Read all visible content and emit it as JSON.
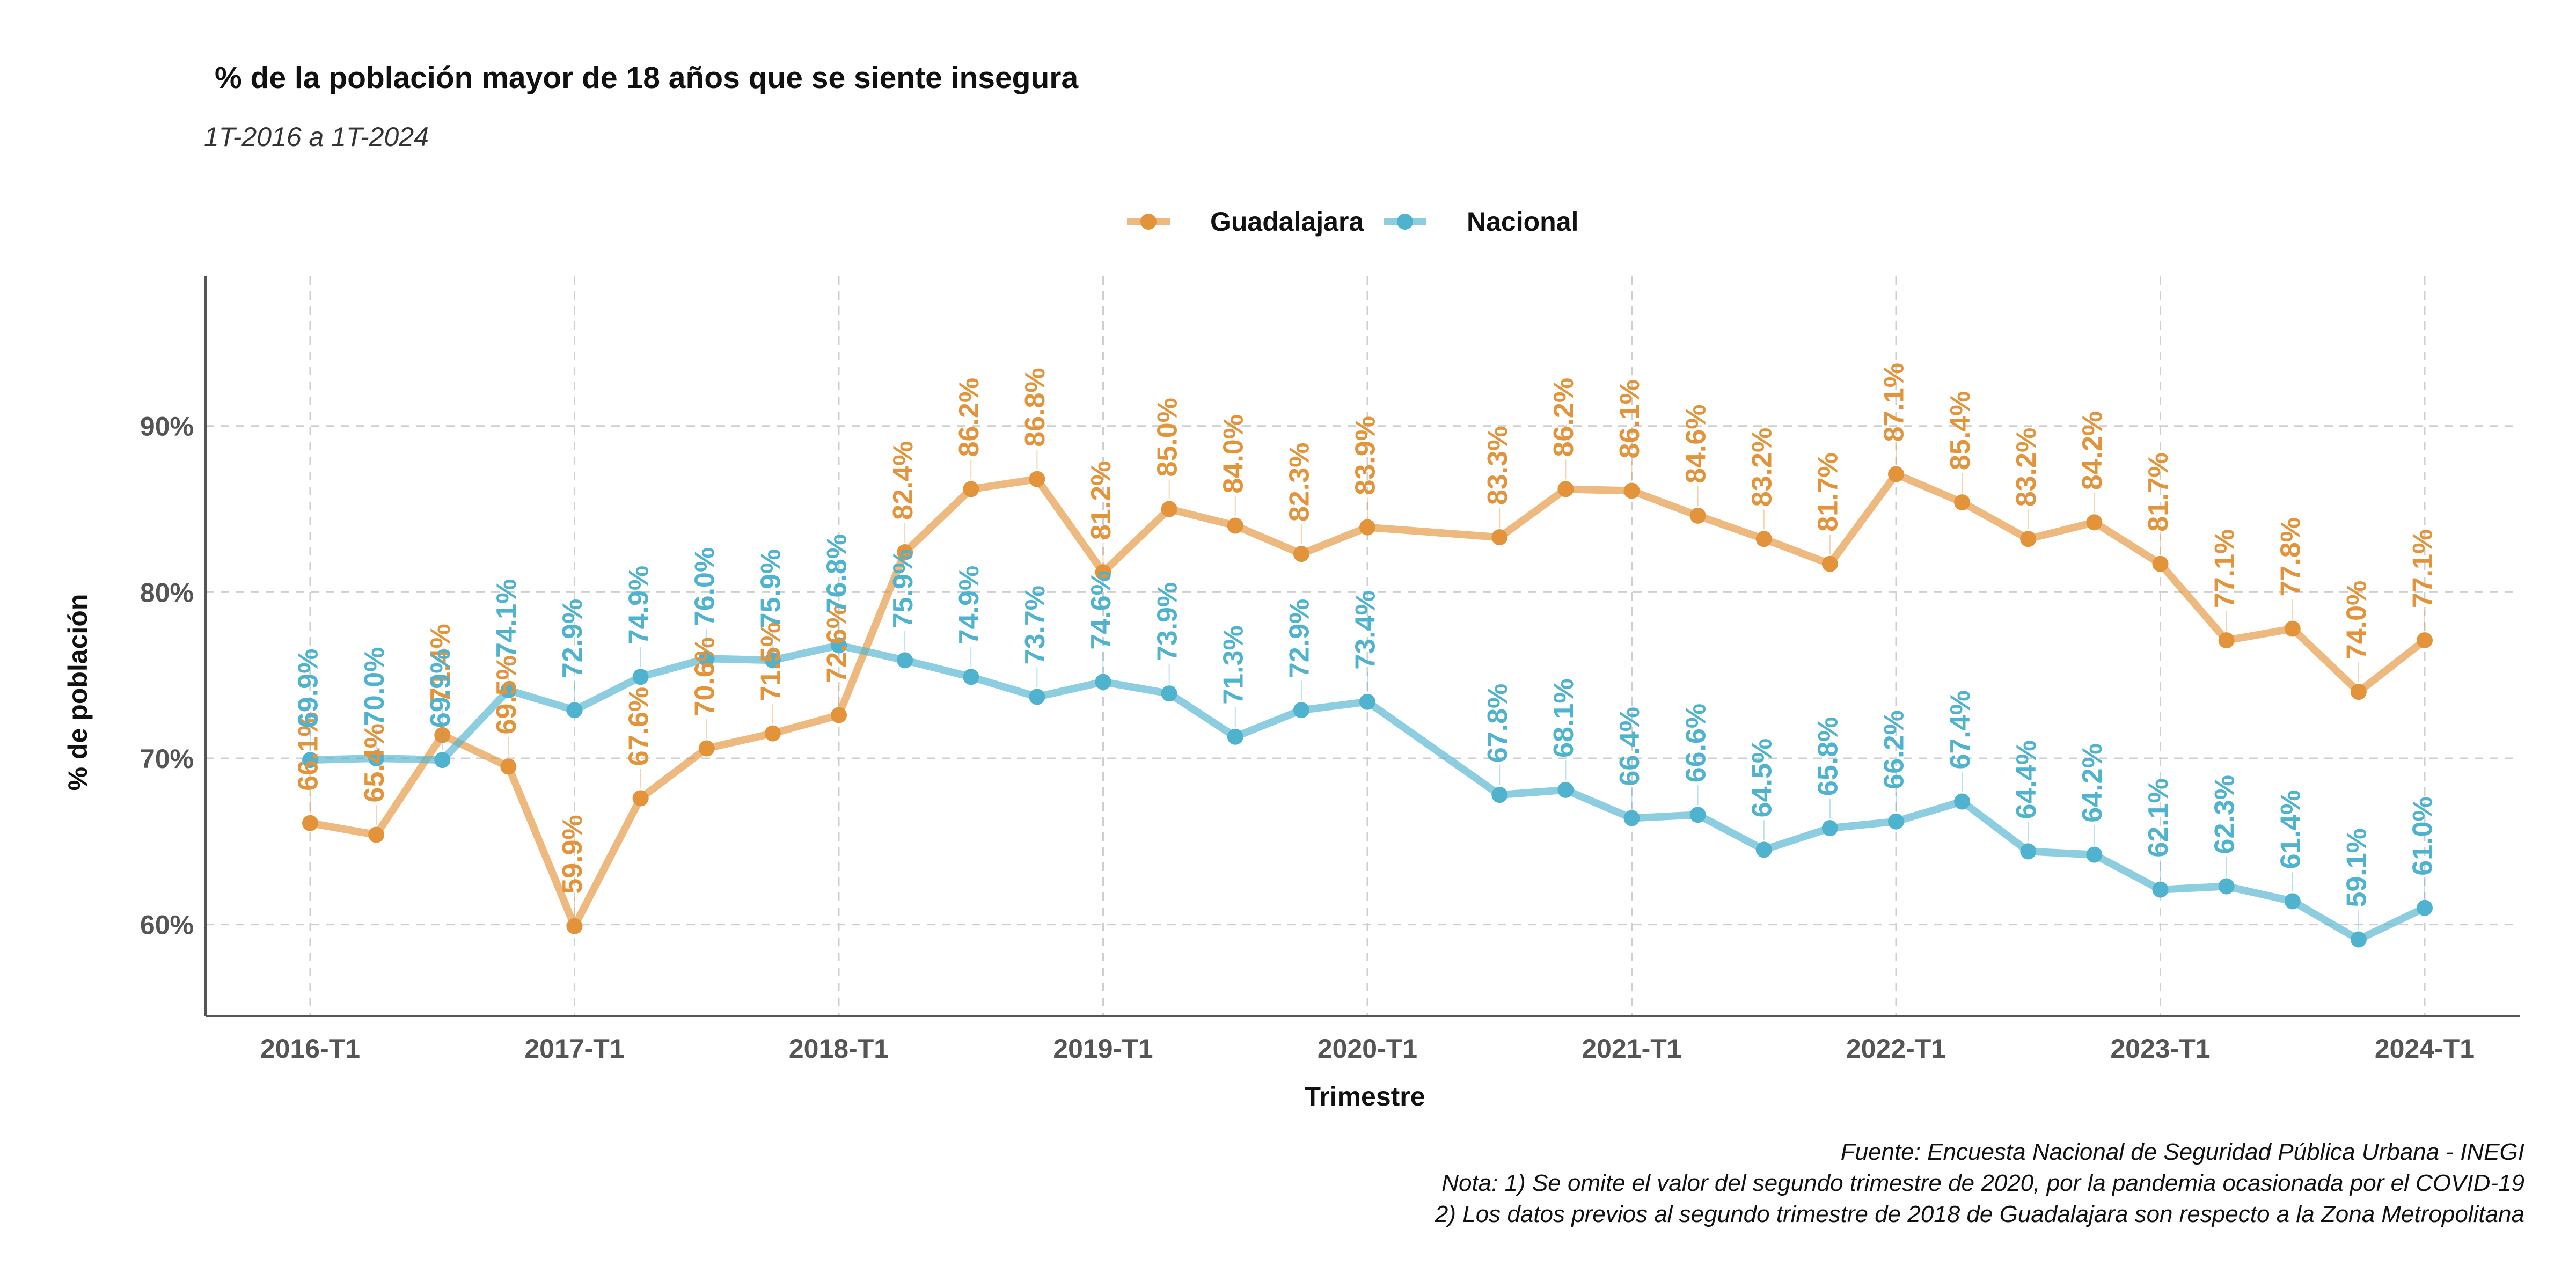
{
  "chart_data": {
    "type": "line",
    "title": "% de la población mayor de 18 años que se siente insegura",
    "subtitle": "1T-2016 a 1T-2024",
    "xlabel": "Trimestre",
    "ylabel": "% de población",
    "x_ticks": [
      "2016-T1",
      "2017-T1",
      "2018-T1",
      "2019-T1",
      "2020-T1",
      "2021-T1",
      "2022-T1",
      "2023-T1",
      "2024-T1"
    ],
    "y_ticks": [
      "60%",
      "70%",
      "80%",
      "90%"
    ],
    "ylim": [
      54.5,
      99
    ],
    "grid": true,
    "legend_position": "top",
    "x": [
      "2016-T1",
      "2016-T2",
      "2016-T3",
      "2016-T4",
      "2017-T1",
      "2017-T2",
      "2017-T3",
      "2017-T4",
      "2018-T1",
      "2018-T2",
      "2018-T3",
      "2018-T4",
      "2019-T1",
      "2019-T2",
      "2019-T3",
      "2019-T4",
      "2020-T1",
      "2020-T3",
      "2020-T4",
      "2021-T1",
      "2021-T2",
      "2021-T3",
      "2021-T4",
      "2022-T1",
      "2022-T2",
      "2022-T3",
      "2022-T4",
      "2023-T1",
      "2023-T2",
      "2023-T3",
      "2023-T4",
      "2024-T1"
    ],
    "series": [
      {
        "name": "Guadalajara",
        "color": "#E3943A",
        "values": [
          66.1,
          65.4,
          71.4,
          69.5,
          59.9,
          67.6,
          70.6,
          71.5,
          72.6,
          82.4,
          86.2,
          86.8,
          81.2,
          85.0,
          84.0,
          82.3,
          83.9,
          83.3,
          86.2,
          86.1,
          84.6,
          83.2,
          81.7,
          87.1,
          85.4,
          83.2,
          84.2,
          81.7,
          77.1,
          77.8,
          74.0,
          77.1
        ],
        "labels": [
          "66.1%",
          "65.4%",
          "71.4%",
          "69.5%",
          "59.9%",
          "67.6%",
          "70.6%",
          "71.5%",
          "72.6%",
          "82.4%",
          "86.2%",
          "86.8%",
          "81.2%",
          "85.0%",
          "84.0%",
          "82.3%",
          "83.9%",
          "83.3%",
          "86.2%",
          "86.1%",
          "84.6%",
          "83.2%",
          "81.7%",
          "87.1%",
          "85.4%",
          "83.2%",
          "84.2%",
          "81.7%",
          "77.1%",
          "77.8%",
          "74.0%",
          "77.1%"
        ]
      },
      {
        "name": "Nacional",
        "color": "#4FB3CF",
        "values": [
          69.9,
          70.0,
          69.9,
          74.1,
          72.9,
          74.9,
          76.0,
          75.9,
          76.8,
          75.9,
          74.9,
          73.7,
          74.6,
          73.9,
          71.3,
          72.9,
          73.4,
          67.8,
          68.1,
          66.4,
          66.6,
          64.5,
          65.8,
          66.2,
          67.4,
          64.4,
          64.2,
          62.1,
          62.3,
          61.4,
          59.1,
          61.0
        ],
        "labels": [
          "69.9%",
          "70.0%",
          "69.9%",
          "74.1%",
          "72.9%",
          "74.9%",
          "76.0%",
          "75.9%",
          "76.8%",
          "75.9%",
          "74.9%",
          "73.7%",
          "74.6%",
          "73.9%",
          "71.3%",
          "72.9%",
          "73.4%",
          "67.8%",
          "68.1%",
          "66.4%",
          "66.6%",
          "64.5%",
          "65.8%",
          "66.2%",
          "67.4%",
          "64.4%",
          "64.2%",
          "62.1%",
          "62.3%",
          "61.4%",
          "59.1%",
          "61.0%"
        ]
      }
    ]
  },
  "caption": {
    "line1": "Fuente: Encuesta Nacional de Seguridad Pública Urbana - INEGI",
    "line2": "Nota: 1) Se omite el valor del segundo trimestre de 2020, por la pandemia ocasionada por el COVID-19",
    "line3": "2) Los datos previos al segundo trimestre de 2018 de Guadalajara son respecto a la Zona Metropolitana"
  }
}
